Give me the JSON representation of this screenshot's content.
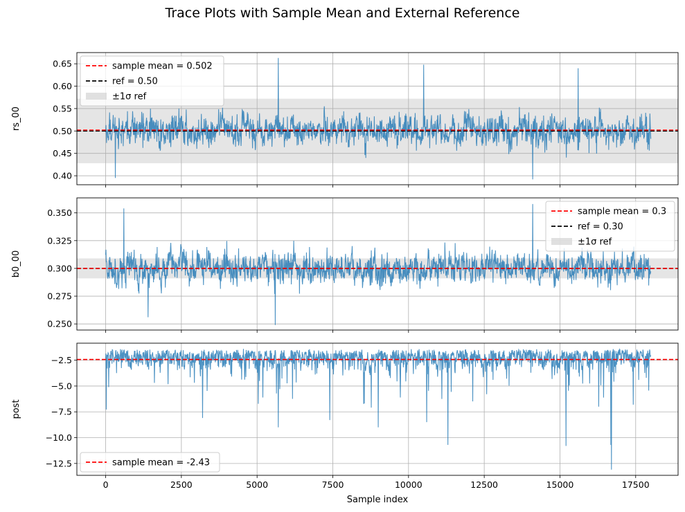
{
  "figure": {
    "title": "Trace Plots with Sample Mean and External Reference"
  },
  "chart_data": [
    {
      "type": "line",
      "ylabel": "rs_00",
      "xlabel": "",
      "xlim": [
        -950,
        18900
      ],
      "ylim": [
        0.38,
        0.675
      ],
      "xticks": [
        0,
        2500,
        5000,
        7500,
        10000,
        12500,
        15000,
        17500
      ],
      "xtick_labels_visible": false,
      "yticks": [
        0.4,
        0.45,
        0.5,
        0.55,
        0.6,
        0.65
      ],
      "ytick_labels": [
        "0.40",
        "0.45",
        "0.50",
        "0.55",
        "0.60",
        "0.65"
      ],
      "grid": true,
      "legend_position": "upper-left",
      "trace": {
        "n_samples": 18000,
        "center": 0.502,
        "band_sd": 0.026,
        "min": 0.392,
        "max": 0.663,
        "extremes": [
          [
            5700,
            0.663
          ],
          [
            10500,
            0.648
          ],
          [
            15600,
            0.64
          ],
          [
            14100,
            0.392
          ],
          [
            320,
            0.395
          ]
        ]
      },
      "sample_mean": 0.502,
      "ref": 0.5,
      "ref_sd": 0.072,
      "legend": [
        "sample mean = 0.502",
        "ref = 0.50",
        "±1σ ref"
      ]
    },
    {
      "type": "line",
      "ylabel": "b0_00",
      "xlabel": "",
      "xlim": [
        -950,
        18900
      ],
      "ylim": [
        0.2445,
        0.3635
      ],
      "xticks": [
        0,
        2500,
        5000,
        7500,
        10000,
        12500,
        15000,
        17500
      ],
      "xtick_labels_visible": false,
      "yticks": [
        0.25,
        0.275,
        0.3,
        0.325,
        0.35
      ],
      "ytick_labels": [
        "0.250",
        "0.275",
        "0.300",
        "0.325",
        "0.350"
      ],
      "grid": true,
      "legend_position": "upper-right",
      "trace": {
        "n_samples": 18000,
        "center": 0.3,
        "band_sd": 0.0105,
        "min": 0.249,
        "max": 0.358,
        "extremes": [
          [
            14100,
            0.358
          ],
          [
            5600,
            0.249
          ],
          [
            600,
            0.354
          ],
          [
            1400,
            0.256
          ]
        ]
      },
      "sample_mean": 0.3,
      "ref": 0.3,
      "ref_sd": 0.009,
      "legend": [
        "sample mean = 0.3",
        "ref = 0.30",
        "±1σ ref"
      ]
    },
    {
      "type": "line",
      "ylabel": "post",
      "xlabel": "Sample index",
      "xlim": [
        -950,
        18900
      ],
      "ylim": [
        -13.65,
        -0.85
      ],
      "xticks": [
        0,
        2500,
        5000,
        7500,
        10000,
        12500,
        15000,
        17500
      ],
      "xtick_labels_visible": true,
      "xtick_labels": [
        "0",
        "2500",
        "5000",
        "7500",
        "10000",
        "12500",
        "15000",
        "17500"
      ],
      "yticks": [
        -12.5,
        -10.0,
        -7.5,
        -5.0,
        -2.5
      ],
      "ytick_labels": [
        "−12.5",
        "−10.0",
        "−7.5",
        "−5.0",
        "−2.5"
      ],
      "grid": true,
      "legend_position": "lower-left",
      "trace": {
        "n_samples": 18000,
        "center": -2.43,
        "top": -1.4,
        "min": -13.1,
        "max": -1.4,
        "extremes": [
          [
            16700,
            -13.1
          ],
          [
            11300,
            -10.7
          ],
          [
            15200,
            -10.8
          ],
          [
            16680,
            -10.7
          ],
          [
            5700,
            -9.0
          ],
          [
            9000,
            -9.0
          ],
          [
            3200,
            -8.1
          ],
          [
            7400,
            -8.3
          ],
          [
            10600,
            -8.5
          ]
        ]
      },
      "sample_mean": -2.43,
      "legend": [
        "sample mean = -2.43"
      ]
    }
  ],
  "colors": {
    "trace": "#1f77b4",
    "mean": "#ff0000",
    "ref": "#000000",
    "band": "#d3d3d3",
    "grid": "#b0b0b0"
  }
}
